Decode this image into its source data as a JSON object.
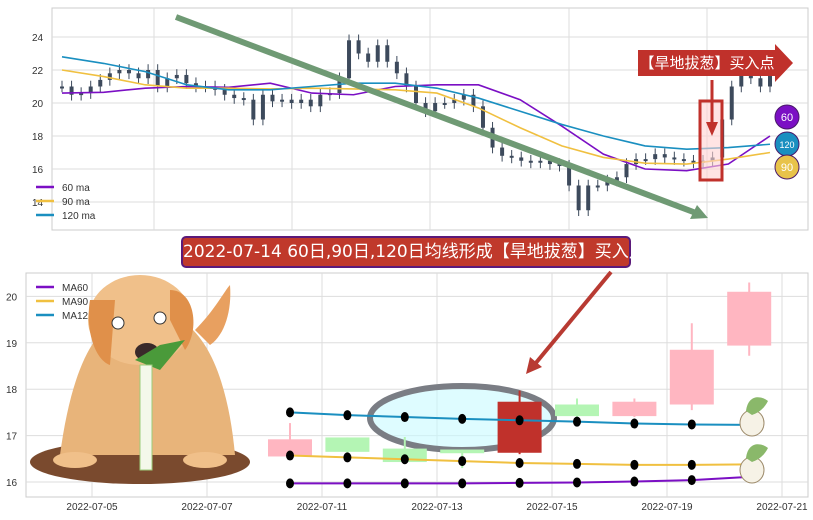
{
  "chart_data": [
    {
      "type": "candlestick-line",
      "ylim": [
        12.5,
        25.7
      ],
      "yticks": [
        14,
        16,
        18,
        20,
        22,
        24
      ],
      "grid": true,
      "legend": "bottom-left",
      "close": [
        21,
        20.5,
        20.6,
        21,
        21.4,
        21.8,
        22,
        21.8,
        21.5,
        22,
        21,
        21.5,
        21.7,
        21.2,
        21,
        21,
        20.8,
        20.5,
        20.3,
        20.2,
        19,
        20.5,
        20.1,
        20.2,
        20,
        20.2,
        19.8,
        20.5,
        20.6,
        21.5,
        23.8,
        23,
        22.5,
        23.5,
        22.5,
        21.8,
        21,
        20,
        19.5,
        20,
        20,
        20.2,
        20.5,
        19.8,
        18.5,
        17.3,
        16.8,
        16.7,
        16.5,
        16.4,
        16.5,
        16.3,
        16.2,
        15,
        13.5,
        15,
        15,
        15.3,
        15.5,
        16.3,
        16.6,
        16.6,
        16.9,
        16.7,
        16.6,
        16.5,
        16.4,
        16.5,
        16.7,
        19,
        21,
        22.5,
        21.5,
        21,
        22
      ],
      "series": [
        {
          "name": "60 ma",
          "color": "#7b0fc4",
          "values": [
            20.6,
            20.65,
            20.9,
            21,
            20.95,
            21.2,
            20.6,
            20.5,
            21,
            21.1,
            21.1,
            20.2,
            18.6,
            16.9,
            16,
            15.9,
            16.3,
            18
          ]
        },
        {
          "name": "90 ma",
          "color": "#f0c040",
          "values": [
            22,
            21.6,
            21.1,
            20.9,
            20.9,
            20.85,
            20.9,
            20.85,
            20.8,
            20.6,
            19.7,
            18.5,
            17.4,
            16.7,
            16.35,
            16.3,
            16.6,
            17
          ]
        },
        {
          "name": "120 ma",
          "color": "#1a8fc0",
          "values": [
            22.8,
            22.4,
            21.9,
            21.1,
            20.8,
            20.8,
            21,
            21.2,
            21.2,
            20.9,
            20.3,
            19.5,
            18.7,
            18,
            17.4,
            17.2,
            17.3,
            17.5
          ]
        }
      ]
    },
    {
      "type": "candlestick",
      "ylim": [
        15.7,
        20.5
      ],
      "yticks": [
        16,
        17,
        18,
        19,
        20
      ],
      "xtick_labels": [
        "2022-07-05",
        "2022-07-07",
        "2022-07-11",
        "2022-07-13",
        "2022-07-15",
        "2022-07-19",
        "2022-07-21"
      ],
      "grid": true,
      "legend": "top-left",
      "candles": [
        {
          "open": 16.55,
          "close": 16.92,
          "high": 17.27,
          "low": 16.55
        },
        {
          "open": 16.96,
          "close": 16.65,
          "high": 16.96,
          "low": 16.6
        },
        {
          "open": 16.72,
          "close": 16.43,
          "high": 16.97,
          "low": 16.4
        },
        {
          "open": 16.7,
          "close": 16.62,
          "high": 16.7,
          "low": 16.3
        },
        {
          "open": 16.63,
          "close": 17.73,
          "high": 17.97,
          "low": 16.6,
          "highlight": true
        },
        {
          "open": 17.67,
          "close": 17.42,
          "high": 17.8,
          "low": 17.4
        },
        {
          "open": 17.42,
          "close": 17.73,
          "high": 17.8,
          "low": 17.4
        },
        {
          "open": 17.67,
          "close": 18.85,
          "high": 19.42,
          "low": 17.55
        },
        {
          "open": 18.94,
          "close": 20.1,
          "high": 20.3,
          "low": 18.72
        }
      ],
      "series": [
        {
          "name": "MA60",
          "color": "#7b0fc4",
          "values": [
            15.97,
            15.97,
            15.97,
            15.97,
            15.98,
            15.99,
            16.01,
            16.04,
            16.11
          ]
        },
        {
          "name": "MA90",
          "color": "#f0c040",
          "values": [
            16.57,
            16.53,
            16.49,
            16.45,
            16.41,
            16.39,
            16.37,
            16.37,
            16.38
          ]
        },
        {
          "name": "MA120",
          "color": "#1a8fc0",
          "values": [
            17.5,
            17.44,
            17.4,
            17.36,
            17.33,
            17.3,
            17.26,
            17.24,
            17.23
          ]
        }
      ],
      "colors": {
        "up": "#ffb6c1",
        "down": "#b4f5b4",
        "highlight": "#c0312b"
      }
    }
  ],
  "annotations": {
    "banner": "2022-07-14 60日,90日,120日均线形成【旱地拔葱】买入点",
    "buy_label": "【旱地拔葱】买入点",
    "badges": [
      {
        "text": "60",
        "color": "#7b0fc4"
      },
      {
        "text": "120",
        "color": "#1a8fc0"
      },
      {
        "text": "90",
        "color": "#e8c34a"
      }
    ]
  }
}
